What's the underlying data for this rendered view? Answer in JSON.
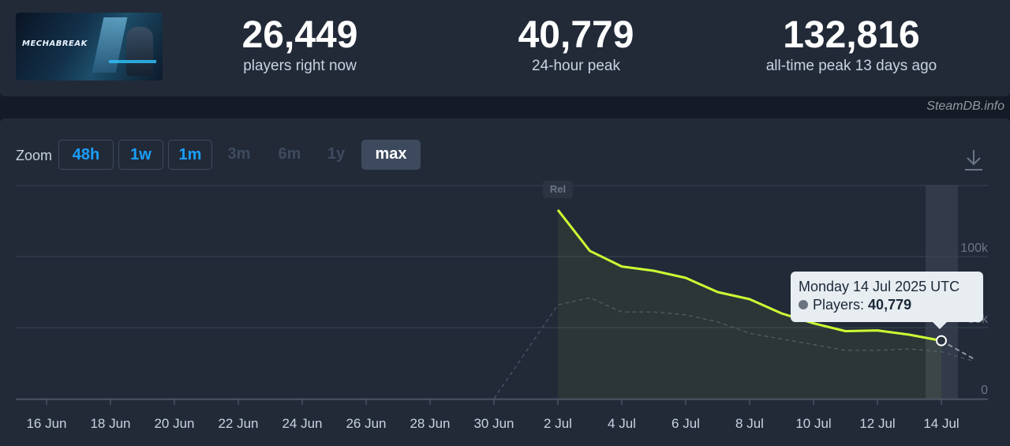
{
  "header": {
    "game_logo_text": "MECHABREAK",
    "stats": [
      {
        "value": "26,449",
        "label": "players right now"
      },
      {
        "value": "40,779",
        "label": "24-hour peak"
      },
      {
        "value": "132,816",
        "label": "all-time peak 13 days ago"
      }
    ]
  },
  "credit": "SteamDB.info",
  "zoom": {
    "label": "Zoom",
    "buttons": [
      {
        "label": "48h",
        "state": "active"
      },
      {
        "label": "1w",
        "state": "active"
      },
      {
        "label": "1m",
        "state": "active"
      },
      {
        "label": "3m",
        "state": "disabled"
      },
      {
        "label": "6m",
        "state": "disabled"
      },
      {
        "label": "1y",
        "state": "disabled"
      },
      {
        "label": "max",
        "state": "selected"
      }
    ]
  },
  "tooltip": {
    "date": "Monday 14 Jul 2025 UTC",
    "series": "Players:",
    "value": "40,779"
  },
  "chart_data": {
    "type": "line",
    "x_tick_labels": [
      "16 Jun",
      "18 Jun",
      "20 Jun",
      "22 Jun",
      "24 Jun",
      "26 Jun",
      "28 Jun",
      "30 Jun",
      "2 Jul",
      "4 Jul",
      "6 Jul",
      "8 Jul",
      "10 Jul",
      "12 Jul",
      "14 Jul"
    ],
    "y_tick_labels": [
      "0",
      "50k",
      "100k"
    ],
    "ylim": [
      0,
      150000
    ],
    "flag_label": "Rel",
    "highlight_day": 28,
    "series": [
      {
        "name": "Players",
        "color": "#ccff33",
        "x_day": [
          16,
          17,
          18,
          19,
          20,
          21,
          22,
          23,
          24,
          25,
          26,
          27,
          28
        ],
        "values": [
          132816,
          104000,
          93000,
          90000,
          85000,
          75000,
          70000,
          60000,
          53000,
          47500,
          48000,
          45000,
          40779
        ]
      },
      {
        "name": "",
        "color": "#4d5766",
        "style": "dashed",
        "x_day": [
          14,
          16,
          17,
          18,
          19,
          20,
          21,
          22,
          23,
          24,
          25,
          26,
          27,
          28,
          29
        ],
        "values": [
          0,
          66000,
          71000,
          61000,
          61000,
          59000,
          54000,
          46000,
          42000,
          38000,
          34000,
          34000,
          35000,
          33000,
          26449
        ]
      }
    ],
    "grid": true,
    "legend": "none"
  }
}
